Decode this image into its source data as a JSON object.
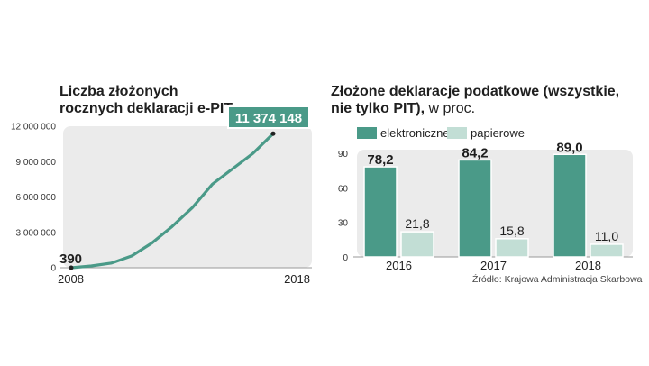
{
  "colors": {
    "teal": "#4a9a88",
    "light_teal": "#c2ded5",
    "panel": "#ebebeb",
    "text": "#1f1f1f"
  },
  "left_title": {
    "line1": "Liczba złożonych",
    "line2": "rocznych deklaracji e-PIT"
  },
  "right_title": {
    "line1": "Złożone deklaracje podatkowe (wszystkie,",
    "line2_bold": "nie tylko PIT),",
    "line2_light": " w proc."
  },
  "source": "Źródło: Krajowa Administracja Skarbowa",
  "chart_data": [
    {
      "type": "line",
      "title": "Liczba złożonych rocznych deklaracji e-PIT",
      "x": [
        2008,
        2009,
        2010,
        2011,
        2012,
        2013,
        2014,
        2015,
        2016,
        2017,
        2018
      ],
      "values": [
        390,
        150000,
        400000,
        1000000,
        2100000,
        3500000,
        5100000,
        7100000,
        8400000,
        9700000,
        11374148
      ],
      "x_tick_labels": [
        "2008",
        "2018"
      ],
      "y_ticks": [
        0,
        3000000,
        6000000,
        9000000,
        12000000
      ],
      "y_tick_labels": [
        "0",
        "3 000 000",
        "6 000 000",
        "9 000 000",
        "12 000 000"
      ],
      "ylim": [
        0,
        12000000
      ],
      "start_label": "390",
      "end_label": "11 374 148"
    },
    {
      "type": "bar",
      "categories": [
        "2016",
        "2017",
        "2018"
      ],
      "series": [
        {
          "name": "elektroniczne",
          "values": [
            78.2,
            84.2,
            89.0
          ],
          "labels": [
            "78,2",
            "84,2",
            "89,0"
          ]
        },
        {
          "name": "papierowe",
          "values": [
            21.8,
            15.8,
            11.0
          ],
          "labels": [
            "21,8",
            "15,8",
            "11,0"
          ]
        }
      ],
      "y_ticks": [
        0,
        30,
        60,
        90
      ],
      "y_tick_labels": [
        "0",
        "30",
        "60",
        "90"
      ],
      "ylim": [
        0,
        90
      ],
      "legend": "top"
    }
  ]
}
